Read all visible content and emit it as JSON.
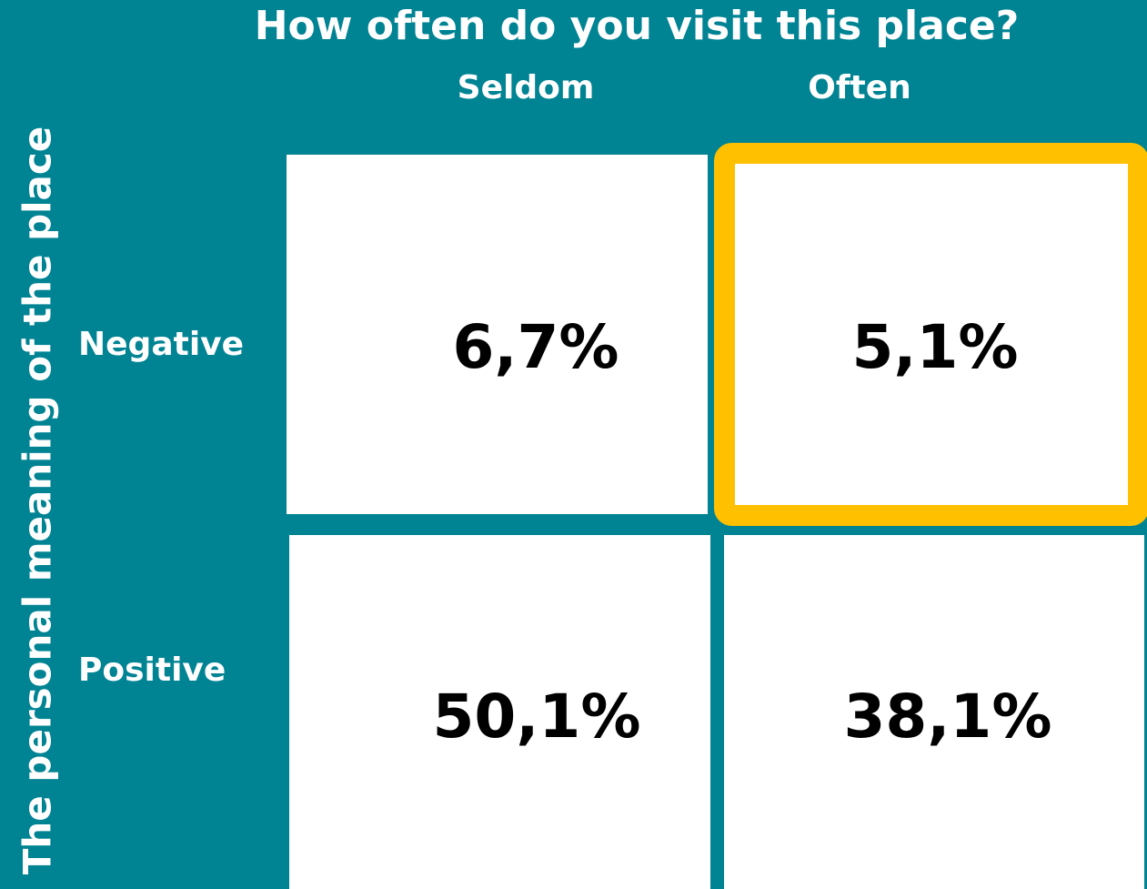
{
  "title": "How often do you visit this place?",
  "columns": [
    "Seldom",
    "Often"
  ],
  "row_axis_label": "The personal meaning of the place",
  "rows": [
    {
      "label": "Negative",
      "cells": [
        "6,7%",
        "5,1%"
      ]
    },
    {
      "label": "Positive",
      "cells": [
        "50,1%",
        "38,1%"
      ]
    }
  ]
}
